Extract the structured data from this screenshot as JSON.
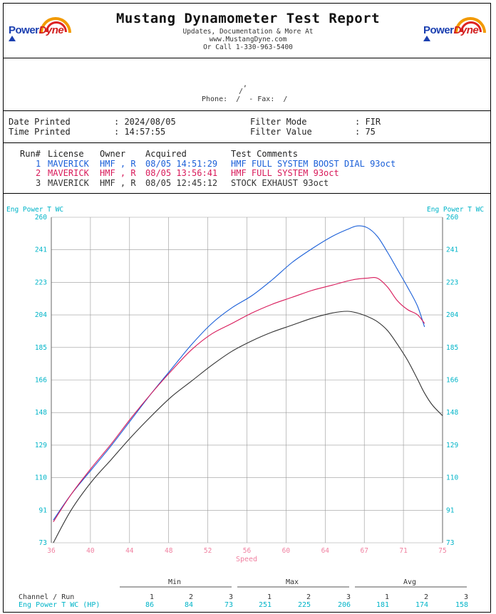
{
  "header": {
    "title": "Mustang Dynamometer Test Report",
    "lines": [
      "Updates, Documentation & More At",
      "www.MustangDyne.com",
      "Or Call 1-330-963-5400"
    ],
    "logo_left": {
      "word_a": "Power",
      "word_b": "Dyne"
    },
    "logo_right": {
      "word_a": "Power",
      "word_b": "Dyne"
    }
  },
  "customer": {
    "comma": ",",
    "slash": "/",
    "phone_line": "Phone:  /  - Fax:  /"
  },
  "info": {
    "date_label": "Date Printed",
    "date_value": ": 2024/08/05",
    "time_label": "Time Printed",
    "time_value": ": 14:57:55",
    "filter_mode_label": "Filter Mode",
    "filter_mode_value": ": FIR",
    "filter_value_label": "Filter Value",
    "filter_value_value": ": 75"
  },
  "runs": {
    "headers": {
      "run": "Run#",
      "license": "License",
      "owner": "Owner",
      "acquired": "Acquired",
      "comments": "Test Comments"
    },
    "rows": [
      {
        "run": "1",
        "license": "MAVERICK",
        "owner": "HMF , R",
        "acquired": "08/05 14:51:29",
        "comments": "HMF FULL SYSTEM BOOST DIAL 93oct",
        "color": "#1a5fd8"
      },
      {
        "run": "2",
        "license": "MAVERICK",
        "owner": "HMF , R",
        "acquired": "08/05 13:56:41",
        "comments": "HMF FULL SYSTEM 93oct",
        "color": "#d81a5a"
      },
      {
        "run": "3",
        "license": "MAVERICK",
        "owner": "HMF , R",
        "acquired": "08/05 12:45:12",
        "comments": "STOCK EXHAUST 93oct",
        "color": "#333333"
      }
    ]
  },
  "chart_data": {
    "type": "line",
    "ylabel_left": "Eng Power T WC",
    "ylabel_right": "Eng Power T WC",
    "xlabel": "Speed",
    "xlim": [
      36,
      75
    ],
    "ylim": [
      73,
      260
    ],
    "x_ticks": [
      "36",
      "40",
      "44",
      "48",
      "52",
      "56",
      "60",
      "64",
      "67",
      "71",
      "75"
    ],
    "y_ticks": [
      "260",
      "241",
      "223",
      "204",
      "185",
      "166",
      "148",
      "129",
      "110",
      "91",
      "73"
    ],
    "grid": true,
    "colors": {
      "axis": "#00b4c8",
      "xaxis": "#f080a0",
      "grid": "#9a9a9a"
    },
    "series": [
      {
        "name": "1",
        "color": "#1a5fd8",
        "x": [
          36.2,
          38,
          40,
          42,
          44,
          46,
          48,
          50,
          52,
          54,
          56,
          58,
          60,
          62,
          64,
          65.5,
          66.5,
          67.5,
          68.5,
          69.5,
          70.5,
          71.5,
          72.5,
          73.2
        ],
        "y": [
          86,
          101,
          115,
          129,
          144,
          159,
          173,
          187,
          199,
          208,
          215,
          224,
          234,
          242,
          249,
          253,
          255,
          254,
          249,
          240,
          230,
          220,
          209,
          197
        ]
      },
      {
        "name": "2",
        "color": "#d81a5a",
        "x": [
          36.2,
          38,
          40,
          42,
          44,
          46,
          48,
          50,
          52,
          54,
          56,
          58,
          60,
          62,
          64,
          66,
          67.5,
          68.5,
          69.5,
          70.5,
          71.5,
          72.5,
          73.2
        ],
        "y": [
          85,
          101,
          116,
          130,
          145,
          159,
          172,
          184,
          193,
          199,
          205,
          210,
          214,
          218,
          221,
          224,
          225,
          225,
          220,
          212,
          207,
          204,
          199
        ]
      },
      {
        "name": "3",
        "color": "#333333",
        "x": [
          36.2,
          38,
          40,
          42,
          44,
          46,
          48,
          50,
          52,
          54,
          56,
          58,
          60,
          62,
          64,
          65.5,
          66.5,
          67.5,
          68.5,
          69.5,
          70.5,
          71.5,
          72.5,
          73.2,
          74,
          75
        ],
        "y": [
          73,
          92,
          108,
          121,
          134,
          146,
          157,
          166,
          175,
          183,
          189,
          194,
          198,
          202,
          205,
          206,
          205,
          203,
          200,
          195,
          187,
          178,
          167,
          159,
          152,
          146
        ]
      }
    ]
  },
  "stats": {
    "group_labels": [
      "Min",
      "Max",
      "Avg"
    ],
    "channel_header": "Channel / Run",
    "run_numbers": [
      "1",
      "2",
      "3",
      "1",
      "2",
      "3",
      "1",
      "2",
      "3"
    ],
    "channel_name": "Eng Power T WC (HP)",
    "values": [
      "86",
      "84",
      "73",
      "251",
      "225",
      "206",
      "181",
      "174",
      "158"
    ]
  }
}
